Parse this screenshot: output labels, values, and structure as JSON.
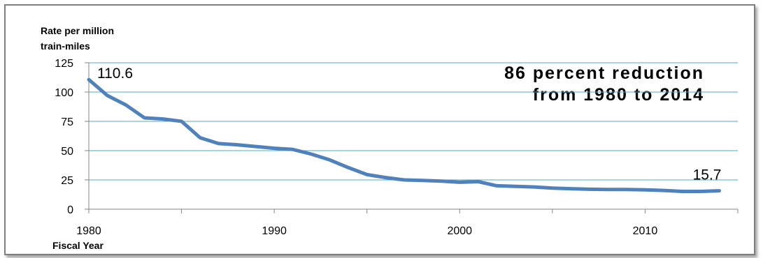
{
  "chart_data": {
    "type": "line",
    "ylabel": "Rate per million train-miles",
    "ylabel_lines": [
      "Rate per million",
      "train-miles"
    ],
    "xlabel": "Fiscal Year",
    "annotation_lines": [
      "86 percent reduction",
      "from 1980 to 2014"
    ],
    "xlim": [
      1980,
      2015
    ],
    "ylim": [
      0,
      125
    ],
    "x_ticks": [
      1980,
      1990,
      2000,
      2010
    ],
    "y_ticks": [
      0,
      25,
      50,
      75,
      100,
      125
    ],
    "grid": "horizontal",
    "line_color": "#4f81bd",
    "grid_color": "#4bacc6",
    "data_labels": [
      {
        "x": 1980,
        "text": "110.6"
      },
      {
        "x": 2014,
        "text": "15.7"
      }
    ],
    "x": [
      1980,
      1981,
      1982,
      1983,
      1984,
      1985,
      1986,
      1987,
      1988,
      1989,
      1990,
      1991,
      1992,
      1993,
      1994,
      1995,
      1996,
      1997,
      1998,
      1999,
      2000,
      2001,
      2002,
      2003,
      2004,
      2005,
      2006,
      2007,
      2008,
      2009,
      2010,
      2011,
      2012,
      2013,
      2014
    ],
    "y": [
      110.6,
      97,
      89,
      78,
      77,
      75,
      61,
      56,
      55,
      53.5,
      52,
      51,
      47,
      42,
      35.5,
      29.5,
      27,
      25,
      24.5,
      24,
      23,
      23.5,
      20,
      19.5,
      19,
      18,
      17.5,
      17,
      16.8,
      16.8,
      16.5,
      16,
      15.2,
      15.2,
      15.7
    ]
  }
}
